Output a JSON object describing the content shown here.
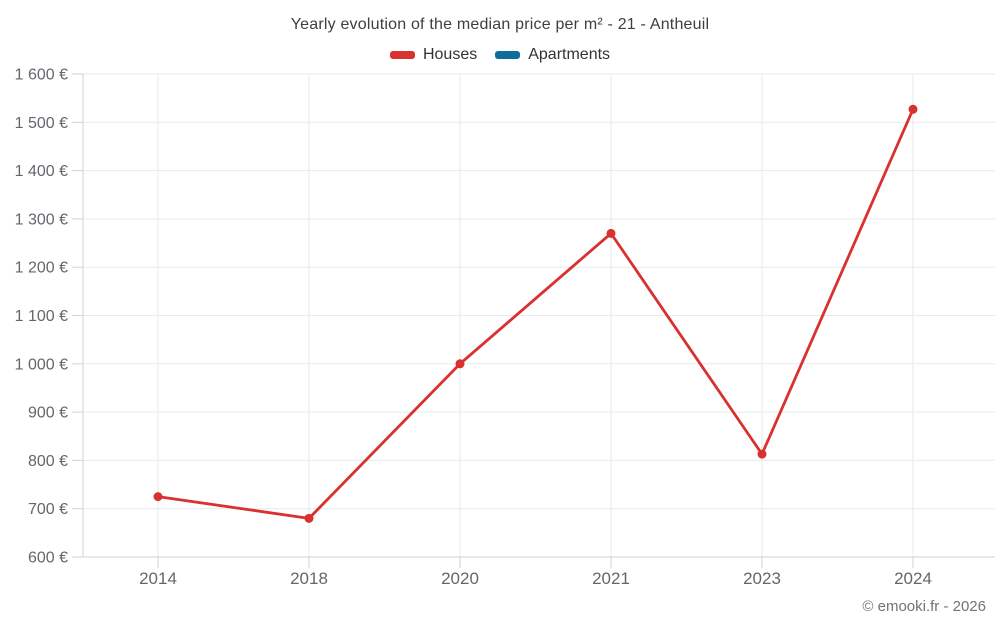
{
  "title": "Yearly evolution of the median price per m² - 21 - Antheuil",
  "legend": [
    {
      "label": "Houses",
      "color": "#d8312f"
    },
    {
      "label": "Apartments",
      "color": "#0f6d9d"
    }
  ],
  "footer": "© emooki.fr - 2026",
  "colors": {
    "houses_red": "#d8312f",
    "apartments_blue": "#0f6d9d",
    "grid_line": "#e8eaed",
    "axis_line": "#cfd2d6",
    "axis_label_text": "#63676c",
    "title_text": "#3c4043",
    "legend_text": "#333333",
    "credits_text": "#6f7479"
  },
  "chart_data": {
    "type": "line",
    "title": "Yearly evolution of the median price per m² - 21 - Antheuil",
    "categories": [
      "2014",
      "2018",
      "2020",
      "2021",
      "2023",
      "2024"
    ],
    "series": [
      {
        "name": "Houses",
        "color": "#d8312f",
        "values": [
          725,
          680,
          1000,
          1270,
          813,
          1527
        ]
      },
      {
        "name": "Apartments",
        "color": "#0f6d9d",
        "values": []
      }
    ],
    "xlabel": "",
    "ylabel": "",
    "ylim": [
      600,
      1600
    ],
    "ytick_step": 100,
    "ytick_labels": [
      "600 €",
      "700 €",
      "800 €",
      "900 €",
      "1 000 €",
      "1 100 €",
      "1 200 €",
      "1 300 €",
      "1 400 €",
      "1 500 €",
      "1 600 €"
    ],
    "grid": true,
    "legend_position": "top",
    "point_markers": true
  }
}
